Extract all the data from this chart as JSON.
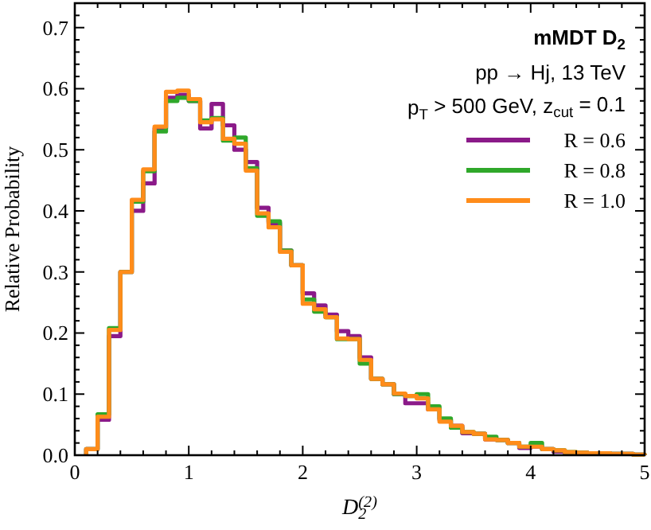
{
  "chart_data": {
    "type": "histogram",
    "xlabel": "D$_{2}$$^{(2)}$",
    "ylabel": "Relative Probability",
    "annotations": [
      "mMDT D$_{2}$",
      "pp → Hj, 13 TeV",
      "p$_{T}$ > 500 GeV, z$_{cut}$ = 0.1"
    ],
    "bins": [
      0.1,
      0.2,
      0.3,
      0.4,
      0.5,
      0.6,
      0.7,
      0.8,
      0.9,
      1.0,
      1.1,
      1.2,
      1.3,
      1.4,
      1.5,
      1.6,
      1.7,
      1.8,
      1.9,
      2.0,
      2.1,
      2.2,
      2.3,
      2.4,
      2.5,
      2.6,
      2.7,
      2.8,
      2.9,
      3.0,
      3.1,
      3.2,
      3.3,
      3.4,
      3.5,
      3.6,
      3.7,
      3.8,
      3.9,
      4.0,
      4.1,
      4.2,
      4.3,
      4.4,
      4.5,
      4.6,
      4.7,
      4.8,
      4.9,
      5.0
    ],
    "series": [
      {
        "name": "R = 0.6",
        "color": "#8b1a89",
        "values": [
          0.01,
          0.058,
          0.195,
          0.3,
          0.4,
          0.445,
          0.535,
          0.585,
          0.59,
          0.58,
          0.535,
          0.575,
          0.54,
          0.5,
          0.48,
          0.405,
          0.38,
          0.335,
          0.311,
          0.265,
          0.245,
          0.23,
          0.203,
          0.195,
          0.16,
          0.125,
          0.116,
          0.1,
          0.085,
          0.085,
          0.075,
          0.058,
          0.048,
          0.036,
          0.035,
          0.026,
          0.025,
          0.02,
          0.012,
          0.014,
          0.01,
          0.006,
          0.003,
          0.004,
          0.003,
          0.003,
          0.002,
          0.002,
          0.001
        ]
      },
      {
        "name": "R = 0.8",
        "color": "#2fa82a",
        "values": [
          0.01,
          0.067,
          0.208,
          0.3,
          0.415,
          0.465,
          0.53,
          0.58,
          0.585,
          0.58,
          0.548,
          0.552,
          0.515,
          0.52,
          0.47,
          0.392,
          0.383,
          0.335,
          0.311,
          0.255,
          0.235,
          0.226,
          0.19,
          0.19,
          0.15,
          0.125,
          0.116,
          0.1,
          0.097,
          0.1,
          0.08,
          0.06,
          0.045,
          0.038,
          0.035,
          0.03,
          0.025,
          0.02,
          0.014,
          0.02,
          0.01,
          0.008,
          0.005,
          0.004,
          0.003,
          0.003,
          0.002,
          0.002,
          0.001
        ]
      },
      {
        "name": "R = 1.0",
        "color": "#ff8c1a",
        "values": [
          0.01,
          0.063,
          0.205,
          0.3,
          0.418,
          0.468,
          0.538,
          0.595,
          0.597,
          0.583,
          0.545,
          0.55,
          0.518,
          0.51,
          0.466,
          0.396,
          0.373,
          0.333,
          0.311,
          0.248,
          0.239,
          0.226,
          0.191,
          0.19,
          0.156,
          0.125,
          0.116,
          0.101,
          0.097,
          0.093,
          0.075,
          0.055,
          0.048,
          0.038,
          0.035,
          0.026,
          0.025,
          0.02,
          0.014,
          0.014,
          0.01,
          0.008,
          0.005,
          0.004,
          0.003,
          0.003,
          0.002,
          0.002,
          0.001
        ]
      }
    ],
    "xlim": [
      0,
      5
    ],
    "ylim": [
      0,
      0.74
    ],
    "xticks": [
      0,
      {
        "value": 0.2,
        "label": null
      },
      {
        "value": 0.4,
        "label": null
      },
      {
        "value": 0.6,
        "label": null
      },
      {
        "value": 0.8,
        "label": null
      },
      1,
      {
        "value": 1.2,
        "label": null
      },
      {
        "value": 1.4,
        "label": null
      },
      {
        "value": 1.6,
        "label": null
      },
      {
        "value": 1.8,
        "label": null
      },
      2,
      {
        "value": 2.2,
        "label": null
      },
      {
        "value": 2.4,
        "label": null
      },
      {
        "value": 2.6,
        "label": null
      },
      {
        "value": 2.8,
        "label": null
      },
      3,
      {
        "value": 3.2,
        "label": null
      },
      {
        "value": 3.4,
        "label": null
      },
      {
        "value": 3.6,
        "label": null
      },
      {
        "value": 3.8,
        "label": null
      },
      4,
      {
        "value": 4.2,
        "label": null
      },
      {
        "value": 4.4,
        "label": null
      },
      {
        "value": 4.6,
        "label": null
      },
      {
        "value": 4.8,
        "label": null
      },
      5
    ],
    "yticks": [
      {
        "value": 0,
        "label": "0.0"
      },
      {
        "value": 0.02,
        "label": null
      },
      {
        "value": 0.04,
        "label": null
      },
      {
        "value": 0.06,
        "label": null
      },
      {
        "value": 0.08,
        "label": null
      },
      {
        "value": 0.1,
        "label": "0.1"
      },
      {
        "value": 0.12,
        "label": null
      },
      {
        "value": 0.14,
        "label": null
      },
      {
        "value": 0.16,
        "label": null
      },
      {
        "value": 0.18,
        "label": null
      },
      {
        "value": 0.2,
        "label": "0.2"
      },
      {
        "value": 0.22,
        "label": null
      },
      {
        "value": 0.24,
        "label": null
      },
      {
        "value": 0.26,
        "label": null
      },
      {
        "value": 0.28,
        "label": null
      },
      {
        "value": 0.3,
        "label": "0.3"
      },
      {
        "value": 0.32,
        "label": null
      },
      {
        "value": 0.34,
        "label": null
      },
      {
        "value": 0.36,
        "label": null
      },
      {
        "value": 0.38,
        "label": null
      },
      {
        "value": 0.4,
        "label": "0.4"
      },
      {
        "value": 0.42,
        "label": null
      },
      {
        "value": 0.44,
        "label": null
      },
      {
        "value": 0.46,
        "label": null
      },
      {
        "value": 0.48,
        "label": null
      },
      {
        "value": 0.5,
        "label": "0.5"
      },
      {
        "value": 0.52,
        "label": null
      },
      {
        "value": 0.54,
        "label": null
      },
      {
        "value": 0.56,
        "label": null
      },
      {
        "value": 0.58,
        "label": null
      },
      {
        "value": 0.6,
        "label": "0.6"
      },
      {
        "value": 0.62,
        "label": null
      },
      {
        "value": 0.64,
        "label": null
      },
      {
        "value": 0.66,
        "label": null
      },
      {
        "value": 0.68,
        "label": null
      },
      {
        "value": 0.7,
        "label": "0.7"
      },
      {
        "value": 0.72,
        "label": null
      }
    ],
    "legend": "top right",
    "grid": false
  }
}
